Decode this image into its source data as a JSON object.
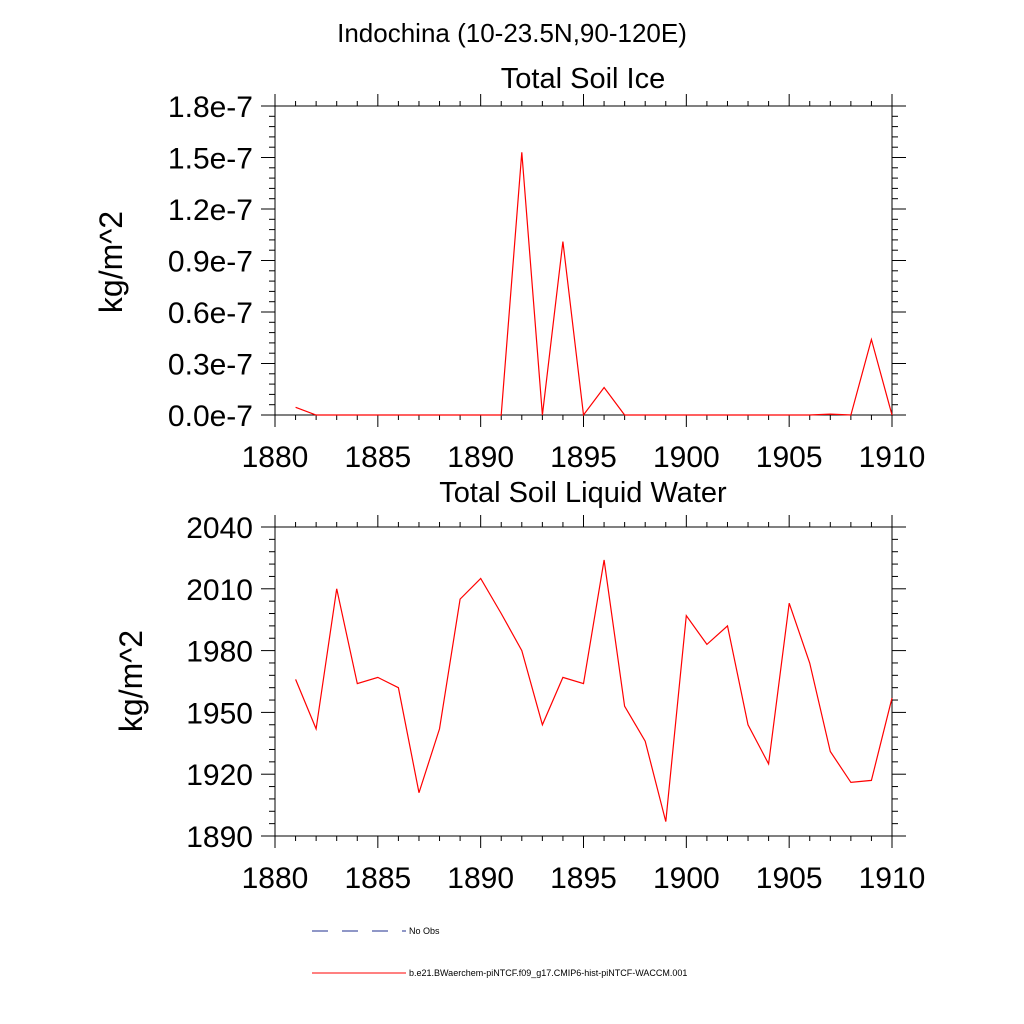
{
  "page_title": "Indochina (10-23.5N,90-120E)",
  "colors": {
    "series": "#ff0000",
    "noobs": "#1f2f8f",
    "axis": "#000000"
  },
  "chart_data": [
    {
      "type": "line",
      "title": "Total Soil Ice",
      "xlabel": "",
      "ylabel": "kg/m^2",
      "xlim": [
        1880,
        1910
      ],
      "ylim": [
        0,
        1.8e-07
      ],
      "xticks": [
        1880,
        1885,
        1890,
        1895,
        1900,
        1905,
        1910
      ],
      "xtick_labels": [
        "1880",
        "1885",
        "1890",
        "1895",
        "1900",
        "1905",
        "1910"
      ],
      "yticks": [
        0,
        3e-08,
        6e-08,
        9e-08,
        1.2e-07,
        1.5e-07,
        1.8e-07
      ],
      "ytick_labels": [
        "0.0e-7",
        "0.3e-7",
        "0.6e-7",
        "0.9e-7",
        "1.2e-7",
        "1.5e-7",
        "1.8e-7"
      ],
      "grid": false,
      "series": [
        {
          "name": "b.e21.BWaerchem-piNTCF.f09_g17.CMIP6-hist-piNTCF-WACCM.001",
          "x": [
            1881,
            1882,
            1883,
            1884,
            1885,
            1886,
            1887,
            1888,
            1889,
            1890,
            1891,
            1892,
            1893,
            1894,
            1895,
            1896,
            1897,
            1898,
            1899,
            1900,
            1901,
            1902,
            1903,
            1904,
            1905,
            1906,
            1907,
            1908,
            1909,
            1910
          ],
          "values": [
            4.5e-09,
            0,
            0,
            0,
            0,
            0,
            0,
            0,
            0,
            0,
            0,
            1.53e-07,
            0,
            1.01e-07,
            0,
            1.6e-08,
            0,
            0,
            0,
            0,
            0,
            0,
            0,
            0,
            0,
            0,
            5e-10,
            0,
            4.4e-08,
            0
          ]
        }
      ]
    },
    {
      "type": "line",
      "title": "Total Soil Liquid Water",
      "xlabel": "",
      "ylabel": "kg/m^2",
      "xlim": [
        1880,
        1910
      ],
      "ylim": [
        1890,
        2040
      ],
      "xticks": [
        1880,
        1885,
        1890,
        1895,
        1900,
        1905,
        1910
      ],
      "xtick_labels": [
        "1880",
        "1885",
        "1890",
        "1895",
        "1900",
        "1905",
        "1910"
      ],
      "yticks": [
        1890,
        1920,
        1950,
        1980,
        2010,
        2040
      ],
      "ytick_labels": [
        "1890",
        "1920",
        "1950",
        "1980",
        "2010",
        "2040"
      ],
      "grid": false,
      "series": [
        {
          "name": "b.e21.BWaerchem-piNTCF.f09_g17.CMIP6-hist-piNTCF-WACCM.001",
          "x": [
            1881,
            1882,
            1883,
            1884,
            1885,
            1886,
            1887,
            1888,
            1889,
            1890,
            1891,
            1892,
            1893,
            1894,
            1895,
            1896,
            1897,
            1898,
            1899,
            1900,
            1901,
            1902,
            1903,
            1904,
            1905,
            1906,
            1907,
            1908,
            1909,
            1910
          ],
          "values": [
            1966,
            1942,
            2010,
            1964,
            1967,
            1962,
            1911,
            1942,
            2005,
            2015,
            1998,
            1980,
            1944,
            1967,
            1964,
            2024,
            1953,
            1936,
            1897,
            1997,
            1983,
            1992,
            1944,
            1925,
            2003,
            1974,
            1931,
            1916,
            1917,
            1957
          ]
        }
      ]
    }
  ],
  "legend": {
    "placement": "bottom",
    "entries": [
      {
        "label": "No Obs",
        "style": "dashed"
      },
      {
        "label": "b.e21.BWaerchem-piNTCF.f09_g17.CMIP6-hist-piNTCF-WACCM.001",
        "style": "solid"
      }
    ]
  }
}
